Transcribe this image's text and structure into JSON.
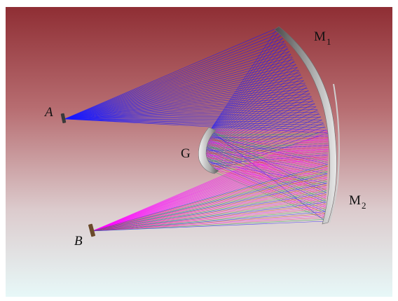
{
  "labels": {
    "point_a": "A",
    "point_b": "B",
    "grating": "G",
    "mirror1": {
      "letter": "M",
      "sub": "1"
    },
    "mirror2": {
      "letter": "M",
      "sub": "2"
    }
  },
  "colors": {
    "background_top": "#8f2e34",
    "background_bottom": "#e7f8f8",
    "incident_rays": "#1a1aff",
    "dispersed_rays": [
      "#ff00ff",
      "#e8308a",
      "#2da84a",
      "#1a1aff",
      "#d03a2a"
    ]
  }
}
